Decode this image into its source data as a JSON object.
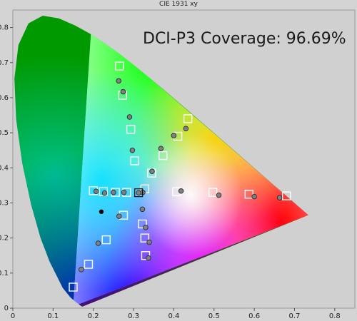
{
  "chart_data": {
    "type": "scatter",
    "title": "CIE 1931 xy",
    "annotation": "DCI-P3 Coverage: 96.69%",
    "xlim": [
      0,
      0.85
    ],
    "ylim": [
      0,
      0.85
    ],
    "x_ticks": [
      "0",
      "0.1",
      "0.2",
      "0.3",
      "0.4",
      "0.5",
      "0.6",
      "0.7",
      "0.8"
    ],
    "y_ticks": [
      "0",
      "0.1",
      "0.2",
      "0.3",
      "0.4",
      "0.5",
      "0.6",
      "0.7",
      "0.8"
    ],
    "grid": false,
    "legend": "none",
    "gamut_triangle": [
      [
        0.68,
        0.32
      ],
      [
        0.265,
        0.69
      ],
      [
        0.15,
        0.06
      ]
    ],
    "measured_gamut_triangle": [
      [
        0.735,
        0.265
      ],
      [
        0.195,
        0.8
      ],
      [
        0.15,
        0.005
      ]
    ],
    "series": [
      {
        "marker": "square",
        "points": [
          [
            0.265,
            0.69
          ],
          [
            0.273,
            0.607
          ],
          [
            0.293,
            0.51
          ],
          [
            0.303,
            0.42
          ],
          [
            0.328,
            0.34
          ],
          [
            0.15,
            0.06
          ],
          [
            0.188,
            0.125
          ],
          [
            0.232,
            0.195
          ],
          [
            0.275,
            0.265
          ],
          [
            0.33,
            0.15
          ],
          [
            0.328,
            0.2
          ],
          [
            0.322,
            0.24
          ],
          [
            0.68,
            0.32
          ],
          [
            0.587,
            0.325
          ],
          [
            0.497,
            0.33
          ],
          [
            0.407,
            0.332
          ],
          [
            0.435,
            0.54
          ],
          [
            0.41,
            0.49
          ],
          [
            0.373,
            0.435
          ],
          [
            0.345,
            0.385
          ],
          [
            0.2,
            0.335
          ],
          [
            0.225,
            0.332
          ],
          [
            0.255,
            0.33
          ],
          [
            0.283,
            0.33
          ],
          [
            0.3127,
            0.329
          ]
        ]
      },
      {
        "marker": "circle",
        "points": [
          [
            0.263,
            0.648
          ],
          [
            0.274,
            0.617
          ],
          [
            0.29,
            0.545
          ],
          [
            0.297,
            0.45
          ],
          [
            0.323,
            0.33
          ],
          [
            0.17,
            0.11
          ],
          [
            0.212,
            0.185
          ],
          [
            0.264,
            0.262
          ],
          [
            0.337,
            0.143
          ],
          [
            0.339,
            0.188
          ],
          [
            0.33,
            0.23
          ],
          [
            0.322,
            0.282
          ],
          [
            0.663,
            0.315
          ],
          [
            0.6,
            0.318
          ],
          [
            0.512,
            0.322
          ],
          [
            0.418,
            0.334
          ],
          [
            0.43,
            0.512
          ],
          [
            0.4,
            0.492
          ],
          [
            0.368,
            0.455
          ],
          [
            0.346,
            0.39
          ],
          [
            0.207,
            0.333
          ],
          [
            0.228,
            0.328
          ],
          [
            0.25,
            0.33
          ],
          [
            0.276,
            0.33
          ],
          [
            0.3127,
            0.329
          ]
        ]
      },
      {
        "marker": "black-circle",
        "points": [
          [
            0.22,
            0.275
          ]
        ]
      }
    ]
  }
}
